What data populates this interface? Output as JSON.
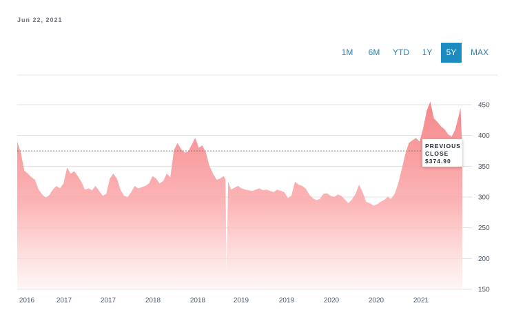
{
  "header": {
    "date": "Jun 22, 2021"
  },
  "range_tabs": [
    {
      "label": "1M",
      "active": false
    },
    {
      "label": "6M",
      "active": false
    },
    {
      "label": "YTD",
      "active": false
    },
    {
      "label": "1Y",
      "active": false
    },
    {
      "label": "5Y",
      "active": true
    },
    {
      "label": "MAX",
      "active": false
    }
  ],
  "colors": {
    "accent": "#1c8bbf",
    "area_top": "#f47f82",
    "area_bottom": "#fff2f2",
    "grid": "#e0e0e0"
  },
  "chart_data": {
    "type": "area",
    "y_range": [
      150,
      460
    ],
    "y_ticks": [
      150,
      200,
      250,
      300,
      350,
      400,
      450
    ],
    "x_tick_labels": [
      "2016",
      "2017",
      "2017",
      "2018",
      "2018",
      "2019",
      "2019",
      "2020",
      "2020",
      "2021"
    ],
    "x_range": [
      0,
      5
    ],
    "series": [
      {
        "values": [
          [
            0.0,
            390
          ],
          [
            0.04,
            372
          ],
          [
            0.08,
            343
          ],
          [
            0.12,
            338
          ],
          [
            0.16,
            332
          ],
          [
            0.2,
            328
          ],
          [
            0.24,
            312
          ],
          [
            0.28,
            304
          ],
          [
            0.32,
            299
          ],
          [
            0.36,
            303
          ],
          [
            0.4,
            312
          ],
          [
            0.44,
            318
          ],
          [
            0.48,
            314
          ],
          [
            0.52,
            322
          ],
          [
            0.56,
            348
          ],
          [
            0.6,
            338
          ],
          [
            0.64,
            342
          ],
          [
            0.68,
            334
          ],
          [
            0.72,
            325
          ],
          [
            0.76,
            312
          ],
          [
            0.8,
            314
          ],
          [
            0.84,
            311
          ],
          [
            0.88,
            318
          ],
          [
            0.92,
            310
          ],
          [
            0.96,
            302
          ],
          [
            1.0,
            305
          ],
          [
            1.04,
            330
          ],
          [
            1.08,
            338
          ],
          [
            1.12,
            330
          ],
          [
            1.16,
            312
          ],
          [
            1.2,
            302
          ],
          [
            1.24,
            300
          ],
          [
            1.28,
            308
          ],
          [
            1.32,
            318
          ],
          [
            1.36,
            314
          ],
          [
            1.4,
            316
          ],
          [
            1.44,
            318
          ],
          [
            1.48,
            322
          ],
          [
            1.52,
            334
          ],
          [
            1.56,
            330
          ],
          [
            1.6,
            322
          ],
          [
            1.64,
            326
          ],
          [
            1.68,
            338
          ],
          [
            1.72,
            332
          ],
          [
            1.76,
            376
          ],
          [
            1.8,
            388
          ],
          [
            1.84,
            378
          ],
          [
            1.88,
            372
          ],
          [
            1.92,
            374
          ],
          [
            1.96,
            385
          ],
          [
            2.0,
            396
          ],
          [
            2.04,
            380
          ],
          [
            2.08,
            384
          ],
          [
            2.12,
            372
          ],
          [
            2.16,
            350
          ],
          [
            2.2,
            338
          ],
          [
            2.24,
            328
          ],
          [
            2.28,
            330
          ],
          [
            2.32,
            334
          ],
          [
            2.34,
            328
          ],
          [
            2.35,
            180
          ],
          [
            2.37,
            325
          ],
          [
            2.4,
            312
          ],
          [
            2.44,
            315
          ],
          [
            2.48,
            318
          ],
          [
            2.52,
            314
          ],
          [
            2.56,
            312
          ],
          [
            2.6,
            311
          ],
          [
            2.64,
            310
          ],
          [
            2.68,
            312
          ],
          [
            2.72,
            314
          ],
          [
            2.76,
            311
          ],
          [
            2.8,
            312
          ],
          [
            2.84,
            310
          ],
          [
            2.88,
            308
          ],
          [
            2.92,
            312
          ],
          [
            2.96,
            310
          ],
          [
            3.0,
            308
          ],
          [
            3.04,
            298
          ],
          [
            3.08,
            302
          ],
          [
            3.12,
            325
          ],
          [
            3.16,
            320
          ],
          [
            3.2,
            318
          ],
          [
            3.24,
            314
          ],
          [
            3.28,
            304
          ],
          [
            3.32,
            298
          ],
          [
            3.36,
            295
          ],
          [
            3.4,
            297
          ],
          [
            3.44,
            305
          ],
          [
            3.48,
            306
          ],
          [
            3.52,
            302
          ],
          [
            3.56,
            300
          ],
          [
            3.6,
            304
          ],
          [
            3.64,
            302
          ],
          [
            3.68,
            296
          ],
          [
            3.72,
            290
          ],
          [
            3.76,
            296
          ],
          [
            3.8,
            305
          ],
          [
            3.84,
            320
          ],
          [
            3.88,
            308
          ],
          [
            3.92,
            292
          ],
          [
            3.96,
            290
          ],
          [
            4.0,
            286
          ],
          [
            4.04,
            288
          ],
          [
            4.08,
            292
          ],
          [
            4.12,
            295
          ],
          [
            4.16,
            300
          ],
          [
            4.2,
            297
          ],
          [
            4.24,
            305
          ],
          [
            4.28,
            322
          ],
          [
            4.32,
            345
          ],
          [
            4.36,
            370
          ],
          [
            4.4,
            388
          ],
          [
            4.44,
            392
          ],
          [
            4.48,
            396
          ],
          [
            4.52,
            390
          ],
          [
            4.56,
            412
          ],
          [
            4.6,
            440
          ],
          [
            4.64,
            455
          ],
          [
            4.68,
            428
          ],
          [
            4.72,
            422
          ],
          [
            4.76,
            415
          ],
          [
            4.8,
            410
          ],
          [
            4.84,
            402
          ],
          [
            4.88,
            398
          ],
          [
            4.92,
            410
          ],
          [
            4.96,
            432
          ],
          [
            4.98,
            445
          ],
          [
            5.0,
            375
          ]
        ]
      }
    ],
    "reference_line": {
      "label_line1": "PREVIOUS",
      "label_line2": "CLOSE",
      "value_label": "$374.90",
      "value": 374.9
    }
  }
}
